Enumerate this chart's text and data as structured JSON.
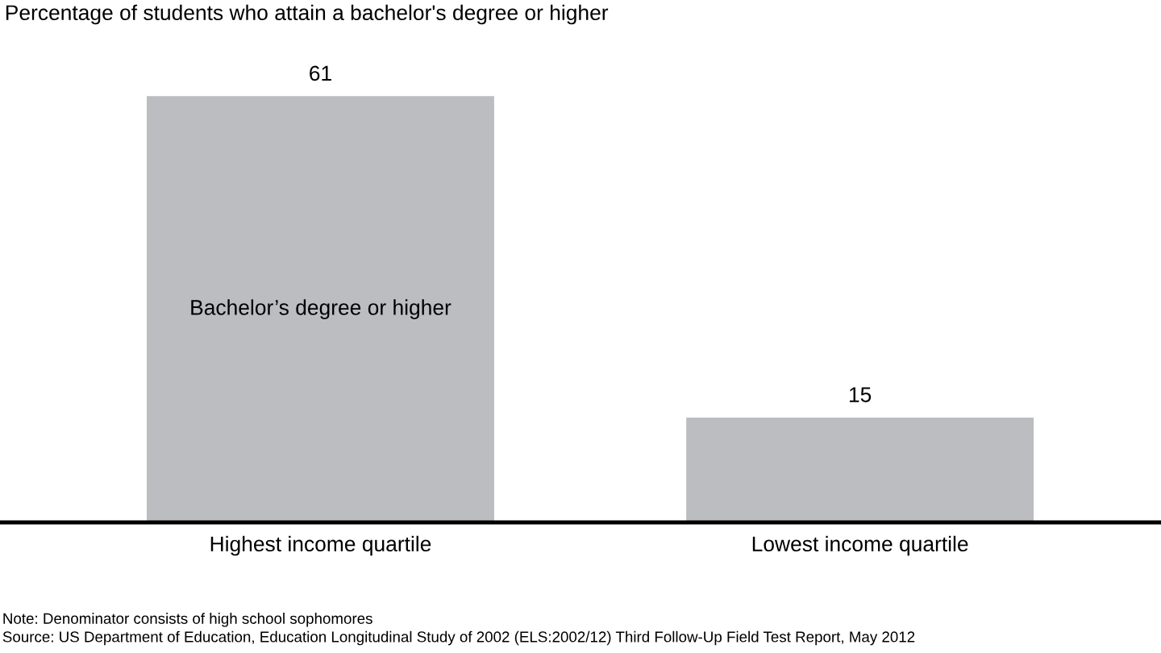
{
  "chart_data": {
    "type": "bar",
    "title": "Percentage of students who attain a bachelor's degree or higher",
    "categories": [
      "Highest income quartile",
      "Lowest income quartile"
    ],
    "series": [
      {
        "name": "Bachelor’s degree or higher",
        "color": "#bcbdc1",
        "values": [
          61,
          15
        ]
      }
    ],
    "data_labels": true,
    "grid": false,
    "legend": false,
    "annotations": [
      "Note: Denominator consists of high school sophomores",
      "Source: US Department of Education, Education Longitudinal Study of 2002 (ELS:2002/12) Third Follow-Up Field Test Report, May 2012"
    ]
  }
}
